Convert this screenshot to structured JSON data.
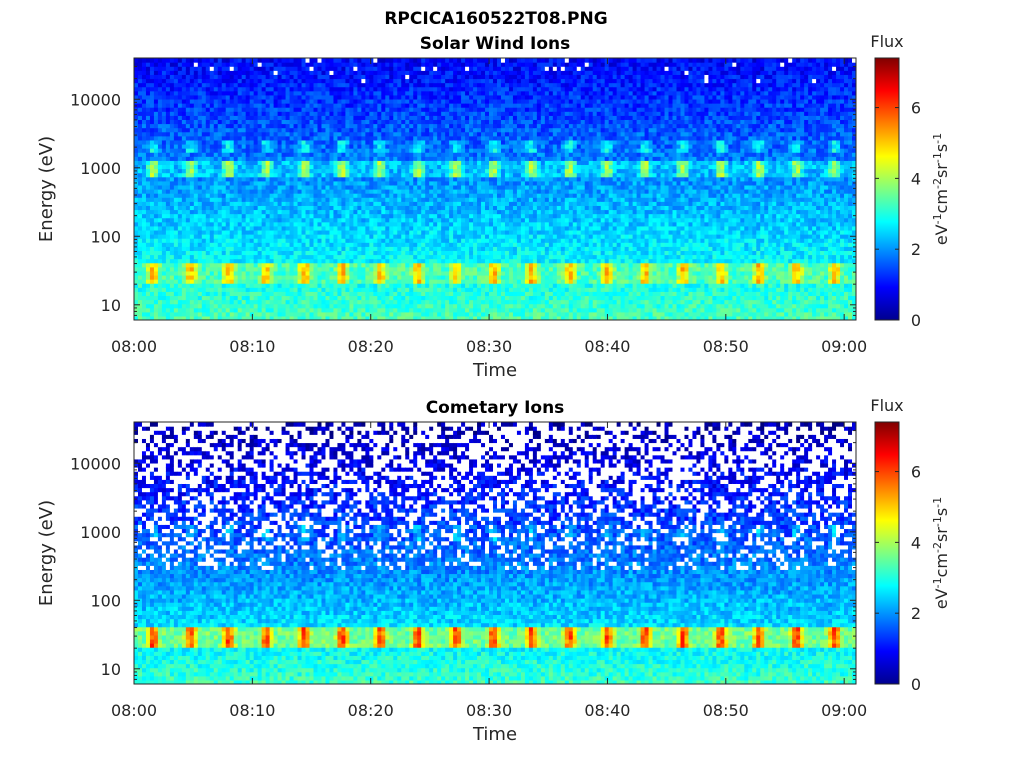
{
  "figure_title": "RPCICA160522T08.PNG",
  "colors": {
    "axis": "#262626",
    "text": "#262626",
    "missing_data": "#ffffff",
    "colormap": "jet"
  },
  "chart_data": [
    {
      "type": "heatmap",
      "title": "Solar Wind Ions",
      "xlabel": "Time",
      "ylabel": "Energy (eV)",
      "x_tick_labels": [
        "08:00",
        "08:10",
        "08:20",
        "08:30",
        "08:40",
        "08:50",
        "09:00"
      ],
      "x_tick_minutes": [
        0,
        10,
        20,
        30,
        40,
        50,
        60
      ],
      "xlim_minutes": [
        0,
        61
      ],
      "y_scale": "log",
      "y_tick_labels": [
        "10",
        "100",
        "1000",
        "10000"
      ],
      "y_tick_values": [
        10,
        100,
        1000,
        10000
      ],
      "ylim": [
        6,
        40000
      ],
      "colorbar": {
        "label": "Flux",
        "units": "eV-1cm-2sr-1s-1",
        "ticks": [
          0,
          2,
          4,
          6
        ],
        "range": [
          0,
          7.4
        ]
      },
      "sweep_period_min": 3.2,
      "bands": [
        {
          "name": "low_energy_peak",
          "energy_range_eV": [
            20,
            40
          ],
          "peak_flux": 5.1,
          "baseline_flux": 3.3
        },
        {
          "name": "secondary_peak",
          "energy_range_eV": [
            750,
            1250
          ],
          "peak_flux": 4.0,
          "baseline_flux": 2.3
        },
        {
          "name": "high_energy_spot",
          "energy_range_eV": [
            1600,
            2500
          ],
          "peak_flux": 2.8
        }
      ],
      "background_flux": {
        "at_6eV": 3.3,
        "at_40000eV": 0.9
      },
      "missing_above_eV": 15000,
      "missing_fraction": 0.03
    },
    {
      "type": "heatmap",
      "title": "Cometary Ions",
      "xlabel": "Time",
      "ylabel": "Energy (eV)",
      "x_tick_labels": [
        "08:00",
        "08:10",
        "08:20",
        "08:30",
        "08:40",
        "08:50",
        "09:00"
      ],
      "x_tick_minutes": [
        0,
        10,
        20,
        30,
        40,
        50,
        60
      ],
      "xlim_minutes": [
        0,
        61
      ],
      "y_scale": "log",
      "y_tick_labels": [
        "10",
        "100",
        "1000",
        "10000"
      ],
      "y_tick_values": [
        10,
        100,
        1000,
        10000
      ],
      "ylim": [
        6,
        40000
      ],
      "colorbar": {
        "label": "Flux",
        "units": "eV-1cm-2sr-1s-1",
        "ticks": [
          0,
          2,
          4,
          6
        ],
        "range": [
          0,
          7.4
        ]
      },
      "sweep_period_min": 3.2,
      "bands": [
        {
          "name": "low_energy_peak",
          "energy_range_eV": [
            20,
            40
          ],
          "peak_flux": 6.0,
          "baseline_flux": 3.6
        },
        {
          "name": "secondary_peak",
          "energy_range_eV": [
            750,
            1250
          ],
          "peak_flux": 2.4,
          "baseline_flux": 1.2
        }
      ],
      "background_flux": {
        "at_6eV": 3.2,
        "at_40000eV": 0.3
      },
      "missing_above_eV": 300,
      "missing_fraction": 0.45
    }
  ]
}
